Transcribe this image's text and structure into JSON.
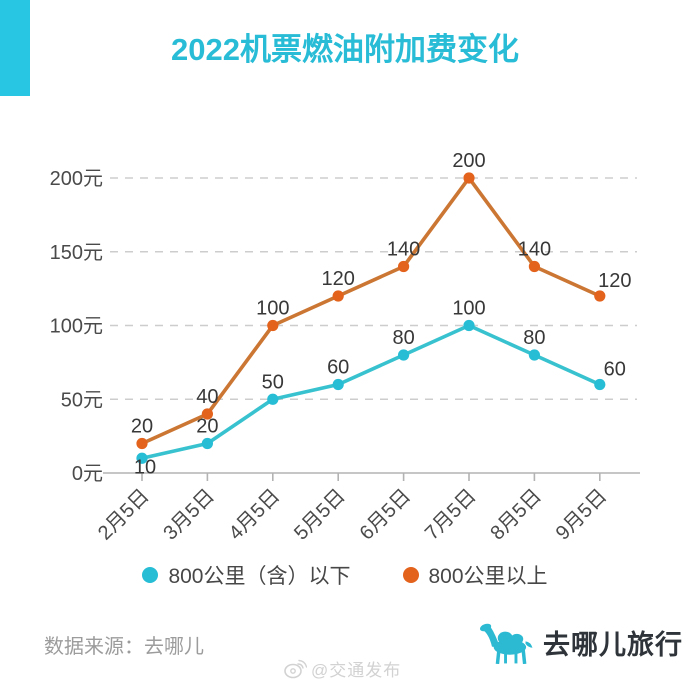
{
  "header": {
    "title": "2022机票燃油附加费变化"
  },
  "colors": {
    "accent_cyan": "#29c6e4",
    "title_cyan": "#29bcd6",
    "series_under800_line": "#38c2cf",
    "series_under800_dot": "#26bdd5",
    "series_over800_line": "#cc7633",
    "series_over800_dot": "#e3621c",
    "grid": "#cdcdcd",
    "axis": "#b3b3b3",
    "tick_text": "#4a4a4a",
    "value_label_text": "#383838",
    "footer_text": "#9c9c9c",
    "watermark_text": "#d2d2d2",
    "brand_text": "#2e3439"
  },
  "chart_data": {
    "type": "line",
    "title": "2022机票燃油附加费变化",
    "categories": [
      "2月5日",
      "3月5日",
      "4月5日",
      "5月5日",
      "6月5日",
      "7月5日",
      "8月5日",
      "9月5日"
    ],
    "series": [
      {
        "name": "800公里（含）以下",
        "line_color": "#38c2cf",
        "dot_color": "#26bdd5",
        "values": [
          10,
          20,
          50,
          60,
          80,
          100,
          80,
          60
        ]
      },
      {
        "name": "800公里以上",
        "line_color": "#cc7633",
        "dot_color": "#e3621c",
        "values": [
          20,
          40,
          100,
          120,
          140,
          200,
          140,
          120
        ]
      }
    ],
    "yticks": [
      0,
      50,
      100,
      150,
      200
    ],
    "ytick_suffix": "元",
    "ylim": [
      0,
      210
    ],
    "xlabel": "",
    "ylabel": "",
    "grid": "horizontal-dashed",
    "x_label_rotation": -45,
    "point_labels": true,
    "legend_position": "bottom"
  },
  "footer": {
    "source": "数据来源：去哪儿",
    "watermark": "@交通发布",
    "brand": "去哪儿旅行"
  },
  "icons": {
    "weibo-icon": "circle-eye-with-signal-waves",
    "camel-logo-icon": "qunar-camel-silhouette"
  }
}
